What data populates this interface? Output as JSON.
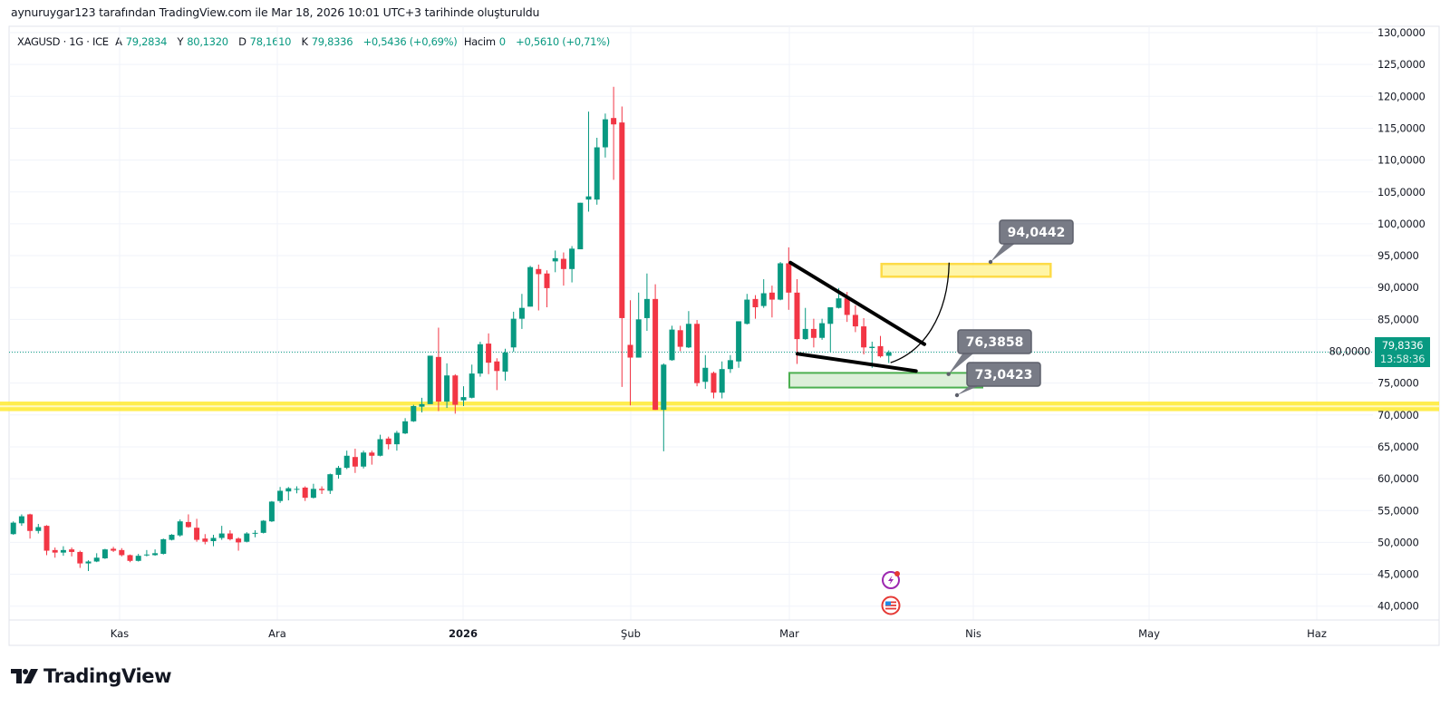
{
  "header": {
    "attribution": "aynuruygar123 tarafından TradingView.com ile Mar 18, 2026 10:01 UTC+3 tarihinde oluşturuldu",
    "symbol": "XAGUSD · 1G · ICE",
    "ohlc": [
      {
        "label": "A",
        "value": "79,2834"
      },
      {
        "label": "Y",
        "value": "80,1320"
      },
      {
        "label": "D",
        "value": "78,1610"
      },
      {
        "label": "K",
        "value": "79,8336"
      }
    ],
    "change": "+0,5436 (+0,69%)",
    "volume_label": "Hacim",
    "volume_value": "0",
    "volume_change": "+0,5610 (+0,71%)"
  },
  "price_axis": {
    "ticks": [
      "130,0000",
      "125,0000",
      "120,0000",
      "115,0000",
      "110,0000",
      "105,0000",
      "100,0000",
      "95,0000",
      "90,0000",
      "85,0000",
      "80,0000",
      "75,0000",
      "70,0000",
      "65,0000",
      "60,0000",
      "55,0000",
      "50,0000",
      "45,0000",
      "40,0000"
    ],
    "last_price": "79,8336",
    "countdown": "13:58:36"
  },
  "time_axis": {
    "ticks": [
      "Kas",
      "Ara",
      "2026",
      "Şub",
      "Mar",
      "Nis",
      "May",
      "Haz"
    ]
  },
  "logo": "TradingView",
  "colors": {
    "up": "#089981",
    "down": "#F23645",
    "grid": "#F0F3FA",
    "support_band": "#FFEB3B",
    "target_box_fill": "#FFF59D",
    "target_box_stroke": "#FDD835",
    "support_box_fill": "#DCEFD9",
    "support_box_stroke": "#4CAF50",
    "trendline": "#000000",
    "callout_fill": "#787B86",
    "events_icon": "#9C27B0",
    "flag_icon": "#E53935"
  },
  "events": [
    {
      "icon": "lightning-event-icon"
    },
    {
      "icon": "us-flag-event-icon"
    }
  ],
  "chart_data": {
    "type": "candlestick",
    "symbol": "XAGUSD",
    "interval": "1G",
    "ylim": [
      37,
      131
    ],
    "grid": true,
    "ohlc": [
      [
        51.3,
        53.3,
        51.2,
        53.1
      ],
      [
        53.0,
        54.4,
        52.6,
        54.1
      ],
      [
        54.4,
        54.5,
        50.6,
        51.8
      ],
      [
        51.8,
        52.9,
        51.4,
        52.4
      ],
      [
        52.6,
        52.7,
        48.0,
        48.7
      ],
      [
        48.8,
        49.2,
        47.6,
        48.4
      ],
      [
        48.4,
        49.4,
        47.9,
        48.8
      ],
      [
        48.9,
        49.2,
        47.8,
        48.5
      ],
      [
        48.5,
        48.7,
        46.0,
        46.7
      ],
      [
        46.7,
        47.2,
        45.5,
        47.0
      ],
      [
        47.0,
        48.3,
        46.9,
        47.6
      ],
      [
        47.5,
        49.0,
        47.4,
        48.9
      ],
      [
        49.0,
        49.3,
        48.5,
        48.7
      ],
      [
        48.8,
        49.1,
        47.8,
        48.0
      ],
      [
        48.0,
        48.1,
        46.9,
        47.1
      ],
      [
        47.1,
        48.2,
        47.0,
        47.9
      ],
      [
        48.0,
        48.8,
        47.8,
        48.1
      ],
      [
        48.0,
        48.9,
        47.9,
        48.3
      ],
      [
        48.2,
        50.6,
        48.1,
        50.5
      ],
      [
        50.4,
        51.3,
        50.3,
        51.2
      ],
      [
        51.1,
        53.6,
        50.9,
        53.3
      ],
      [
        53.2,
        54.4,
        52.3,
        52.4
      ],
      [
        52.3,
        53.7,
        50.1,
        50.4
      ],
      [
        50.6,
        51.3,
        49.7,
        50.1
      ],
      [
        50.2,
        51.2,
        49.4,
        50.7
      ],
      [
        50.7,
        52.6,
        50.4,
        51.4
      ],
      [
        51.4,
        51.9,
        50.3,
        50.5
      ],
      [
        50.6,
        50.8,
        48.7,
        50.0
      ],
      [
        50.1,
        51.6,
        50.0,
        51.4
      ],
      [
        51.4,
        51.9,
        50.8,
        51.5
      ],
      [
        51.5,
        53.5,
        51.4,
        53.4
      ],
      [
        53.3,
        56.5,
        53.2,
        56.4
      ],
      [
        56.5,
        58.7,
        56.2,
        58.1
      ],
      [
        58.0,
        58.7,
        56.6,
        58.5
      ],
      [
        58.3,
        58.8,
        57.7,
        58.4
      ],
      [
        58.6,
        58.8,
        56.5,
        57.0
      ],
      [
        57.0,
        59.2,
        56.9,
        58.4
      ],
      [
        58.4,
        58.8,
        57.6,
        58.2
      ],
      [
        58.1,
        60.8,
        57.6,
        60.7
      ],
      [
        60.6,
        62.0,
        60.0,
        61.7
      ],
      [
        61.7,
        64.4,
        61.5,
        63.6
      ],
      [
        63.4,
        64.7,
        60.9,
        61.9
      ],
      [
        61.9,
        64.4,
        61.6,
        64.1
      ],
      [
        64.1,
        64.4,
        62.2,
        63.6
      ],
      [
        63.6,
        66.9,
        63.5,
        66.2
      ],
      [
        66.3,
        66.6,
        64.6,
        65.4
      ],
      [
        65.4,
        67.5,
        64.4,
        67.2
      ],
      [
        67.1,
        69.5,
        67.0,
        69.0
      ],
      [
        69.0,
        71.6,
        68.9,
        71.4
      ],
      [
        71.3,
        72.7,
        70.4,
        71.7
      ],
      [
        71.7,
        79.3,
        71.7,
        79.3
      ],
      [
        79.1,
        83.7,
        70.6,
        72.1
      ],
      [
        72.1,
        78.1,
        71.1,
        76.2
      ],
      [
        76.2,
        76.4,
        70.2,
        71.6
      ],
      [
        72.3,
        74.5,
        71.4,
        72.8
      ],
      [
        72.7,
        77.9,
        72.6,
        76.5
      ],
      [
        76.5,
        81.5,
        76.0,
        81.1
      ],
      [
        81.2,
        82.8,
        76.4,
        78.2
      ],
      [
        78.4,
        78.9,
        73.9,
        76.9
      ],
      [
        76.8,
        80.4,
        75.4,
        79.8
      ],
      [
        80.6,
        86.2,
        79.9,
        85.1
      ],
      [
        85.1,
        89.0,
        83.5,
        86.8
      ],
      [
        87.0,
        93.4,
        87.0,
        93.2
      ],
      [
        92.9,
        93.6,
        86.4,
        92.1
      ],
      [
        92.2,
        92.7,
        86.9,
        89.9
      ],
      [
        94.1,
        95.8,
        92.4,
        94.6
      ],
      [
        94.5,
        95.5,
        90.3,
        92.9
      ],
      [
        92.9,
        96.5,
        90.8,
        96.1
      ],
      [
        96.0,
        103.3,
        96.0,
        103.3
      ],
      [
        103.8,
        117.6,
        101.9,
        104.3
      ],
      [
        103.8,
        113.5,
        103.0,
        112.0
      ],
      [
        112.0,
        117.3,
        110.4,
        116.4
      ],
      [
        116.6,
        121.5,
        106.9,
        115.6
      ],
      [
        115.9,
        118.4,
        74.4,
        85.2
      ],
      [
        81.0,
        88.0,
        71.5,
        79.0
      ],
      [
        79.0,
        89.2,
        79.0,
        85.0
      ],
      [
        85.2,
        92.2,
        83.2,
        88.2
      ],
      [
        88.2,
        90.5,
        70.8,
        70.8
      ],
      [
        70.8,
        78.1,
        64.3,
        77.9
      ],
      [
        78.6,
        84.0,
        78.5,
        83.4
      ],
      [
        83.3,
        84.0,
        80.0,
        80.7
      ],
      [
        80.6,
        86.3,
        80.5,
        84.3
      ],
      [
        84.3,
        84.9,
        74.5,
        75.0
      ],
      [
        75.2,
        79.4,
        74.1,
        77.4
      ],
      [
        76.6,
        76.8,
        72.6,
        73.5
      ],
      [
        73.5,
        78.4,
        72.6,
        77.2
      ],
      [
        77.2,
        79.4,
        76.6,
        78.6
      ],
      [
        78.4,
        84.7,
        77.4,
        84.7
      ],
      [
        84.3,
        89.0,
        84.2,
        88.1
      ],
      [
        88.2,
        88.8,
        85.1,
        86.9
      ],
      [
        87.1,
        91.3,
        86.8,
        89.1
      ],
      [
        89.2,
        90.3,
        85.3,
        88.1
      ],
      [
        88.1,
        94.0,
        88.0,
        93.8
      ],
      [
        93.8,
        96.3,
        86.5,
        89.2
      ],
      [
        89.2,
        91.3,
        78.0,
        81.9
      ],
      [
        81.9,
        86.8,
        81.8,
        83.5
      ],
      [
        83.5,
        85.1,
        80.6,
        82.1
      ],
      [
        82.1,
        85.1,
        81.8,
        84.4
      ],
      [
        84.3,
        86.9,
        79.9,
        86.9
      ],
      [
        86.8,
        89.9,
        86.7,
        88.3
      ],
      [
        88.3,
        89.3,
        84.6,
        85.7
      ],
      [
        85.7,
        87.2,
        83.0,
        83.9
      ],
      [
        83.9,
        85.2,
        79.5,
        80.6
      ],
      [
        80.5,
        81.5,
        77.4,
        80.7
      ],
      [
        80.8,
        82.4,
        79.0,
        79.2
      ],
      [
        79.2834,
        80.132,
        78.161,
        79.8336
      ]
    ],
    "last_price": 79.8336,
    "annotations": {
      "support_band": {
        "low": 70.6,
        "high": 72.1
      },
      "target_box": {
        "low": 91.7,
        "high": 93.7
      },
      "support_box": {
        "low": 74.3,
        "high": 76.6
      },
      "upper_trendline": {
        "from": 93.9,
        "to": 81.1
      },
      "lower_trendline": {
        "from": 79.6,
        "to": 76.9
      },
      "projection_curve": {
        "from": 78.2,
        "to": 93.9
      },
      "price_labels": [
        "94,0442",
        "76,3858",
        "73,0423"
      ]
    }
  }
}
